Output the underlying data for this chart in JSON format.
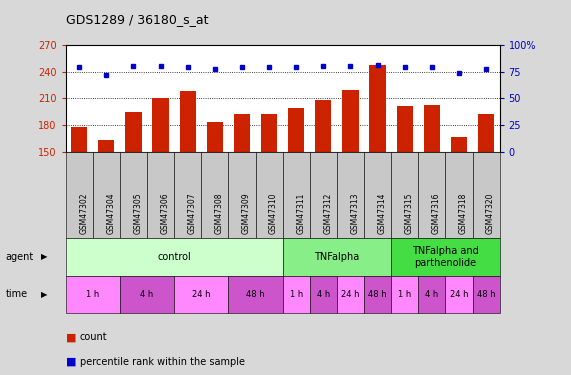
{
  "title": "GDS1289 / 36180_s_at",
  "samples": [
    "GSM47302",
    "GSM47304",
    "GSM47305",
    "GSM47306",
    "GSM47307",
    "GSM47308",
    "GSM47309",
    "GSM47310",
    "GSM47311",
    "GSM47312",
    "GSM47313",
    "GSM47314",
    "GSM47315",
    "GSM47316",
    "GSM47318",
    "GSM47320"
  ],
  "count_values": [
    178,
    163,
    195,
    210,
    218,
    184,
    192,
    192,
    199,
    208,
    220,
    248,
    202,
    203,
    167,
    193
  ],
  "percentile_values": [
    79,
    72,
    80,
    80,
    79,
    78,
    79,
    79,
    79,
    80,
    80,
    81,
    79,
    79,
    74,
    78
  ],
  "ylim_left": [
    150,
    270
  ],
  "ylim_right": [
    0,
    100
  ],
  "yticks_left": [
    150,
    180,
    210,
    240,
    270
  ],
  "yticks_right": [
    0,
    25,
    50,
    75,
    100
  ],
  "bar_color": "#cc2200",
  "dot_color": "#0000cc",
  "agent_groups": [
    {
      "label": "control",
      "start": 0,
      "end": 8,
      "color": "#ccffcc"
    },
    {
      "label": "TNFalpha",
      "start": 8,
      "end": 12,
      "color": "#88ee88"
    },
    {
      "label": "TNFalpha and\nparthenolide",
      "start": 12,
      "end": 16,
      "color": "#44dd44"
    }
  ],
  "time_groups": [
    {
      "label": "1 h",
      "start": 0,
      "end": 2,
      "color": "#ff88ff"
    },
    {
      "label": "4 h",
      "start": 2,
      "end": 4,
      "color": "#cc55cc"
    },
    {
      "label": "24 h",
      "start": 4,
      "end": 6,
      "color": "#ff88ff"
    },
    {
      "label": "48 h",
      "start": 6,
      "end": 8,
      "color": "#cc55cc"
    },
    {
      "label": "1 h",
      "start": 8,
      "end": 9,
      "color": "#ff88ff"
    },
    {
      "label": "4 h",
      "start": 9,
      "end": 10,
      "color": "#cc55cc"
    },
    {
      "label": "24 h",
      "start": 10,
      "end": 11,
      "color": "#ff88ff"
    },
    {
      "label": "48 h",
      "start": 11,
      "end": 12,
      "color": "#cc55cc"
    },
    {
      "label": "1 h",
      "start": 12,
      "end": 13,
      "color": "#ff88ff"
    },
    {
      "label": "4 h",
      "start": 13,
      "end": 14,
      "color": "#cc55cc"
    },
    {
      "label": "24 h",
      "start": 14,
      "end": 15,
      "color": "#ff88ff"
    },
    {
      "label": "48 h",
      "start": 15,
      "end": 16,
      "color": "#cc55cc"
    }
  ],
  "background_color": "#d8d8d8",
  "plot_bg_color": "#ffffff",
  "left_label_color": "#cc2200",
  "right_label_color": "#0000cc",
  "sample_box_color": "#c8c8c8",
  "legend_count_color": "#cc2200",
  "legend_dot_color": "#0000cc"
}
